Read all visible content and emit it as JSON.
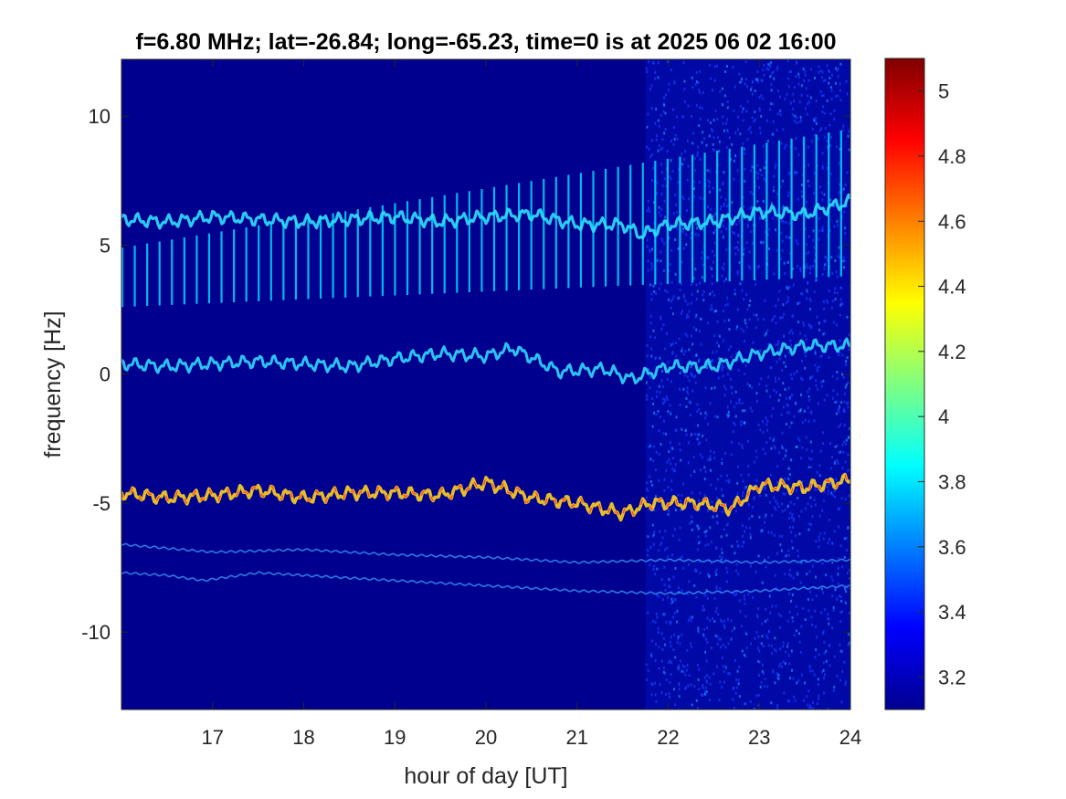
{
  "chart_data": {
    "type": "heatmap",
    "title": "f=6.80 MHz;  lat=-26.84; long=-65.23, time=0 is at 2025 06 02 16:00",
    "xlabel": "hour of day [UT]",
    "ylabel": "frequency [Hz]",
    "xlim": [
      16,
      24
    ],
    "ylim": [
      -13,
      12.2
    ],
    "xticks": [
      17,
      18,
      19,
      20,
      21,
      22,
      23,
      24
    ],
    "yticks": [
      10,
      5,
      0,
      -5,
      -10
    ],
    "colorbar": {
      "clim": [
        3.1,
        5.1
      ],
      "ticks": [
        5,
        4.8,
        4.6,
        4.4,
        4.2,
        4,
        3.8,
        3.6,
        3.4,
        3.2
      ],
      "colormap": "jet"
    },
    "noise_onset_hour": 21.75,
    "pulse_interval_hours": 0.136,
    "series": [
      {
        "x": [
          16,
          16.5,
          17,
          17.5,
          18,
          18.5,
          19,
          19.5,
          20,
          20.5,
          21,
          21.5,
          21.7,
          22,
          22.5,
          23,
          23.5,
          24
        ],
        "values": [
          6.0,
          5.9,
          6.1,
          6.0,
          5.9,
          6.0,
          6.1,
          5.9,
          6.1,
          6.2,
          5.8,
          5.8,
          5.4,
          5.8,
          5.9,
          6.3,
          6.2,
          6.7
        ]
      },
      {
        "x": [
          16,
          16.5,
          17,
          17.5,
          18,
          18.5,
          19,
          19.5,
          20,
          20.3,
          20.8,
          21.3,
          21.6,
          22,
          22.5,
          23,
          23.5,
          24
        ],
        "values": [
          0.4,
          0.3,
          0.4,
          0.5,
          0.4,
          0.3,
          0.6,
          0.8,
          0.7,
          1.0,
          0.1,
          0.2,
          -0.2,
          0.3,
          0.3,
          0.8,
          1.1,
          1.1
        ]
      },
      {
        "x": [
          16,
          16.5,
          17,
          17.5,
          18,
          18.5,
          19,
          19.5,
          20,
          20.5,
          21,
          21.5,
          21.8,
          22.3,
          22.7,
          23,
          23.5,
          24
        ],
        "values": [
          -4.6,
          -4.8,
          -4.7,
          -4.5,
          -4.8,
          -4.6,
          -4.6,
          -4.7,
          -4.2,
          -4.8,
          -5.0,
          -5.4,
          -5.0,
          -5.0,
          -5.2,
          -4.3,
          -4.4,
          -4.1
        ]
      },
      {
        "x": [
          16,
          17,
          18,
          19,
          20,
          21,
          22,
          23,
          24
        ],
        "values": [
          -6.6,
          -6.9,
          -6.8,
          -7.0,
          -7.1,
          -7.3,
          -7.2,
          -7.3,
          -7.2
        ]
      },
      {
        "x": [
          16,
          16.5,
          16.9,
          17.5,
          18,
          19,
          20,
          21,
          22,
          23,
          24
        ],
        "values": [
          -7.7,
          -7.8,
          -8.0,
          -7.7,
          -7.8,
          -8.0,
          -8.2,
          -8.4,
          -8.5,
          -8.4,
          -8.2
        ]
      }
    ]
  }
}
